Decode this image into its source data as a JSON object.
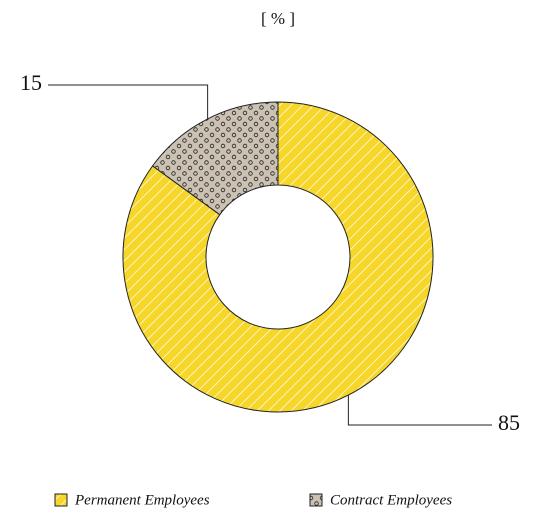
{
  "chart_data": {
    "type": "donut",
    "title": "[ % ]",
    "categories": [
      "Permanent Employees",
      "Contract Employees"
    ],
    "values": [
      85,
      15
    ],
    "colors": [
      "#f5d629",
      "#cbc2b3"
    ]
  }
}
